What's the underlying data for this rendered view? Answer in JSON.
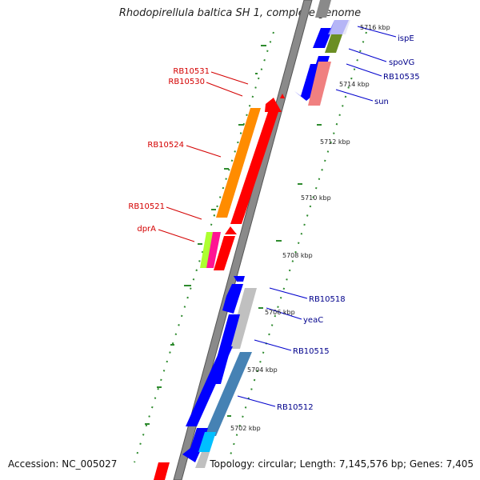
{
  "header": {
    "title": "Rhodopirellula baltica SH 1, complete genome"
  },
  "footer": {
    "accession": "Accession: NC_005027",
    "summary": "Topology: circular; Length: 7,145,576 bp; Genes: 7,405"
  },
  "colors": {
    "forward": "#ff0000",
    "reverse": "#0000ff",
    "axis": "#808080",
    "gc_marks": "#2e8b2e",
    "label_forward": "#d40000",
    "label_reverse": "#00008b"
  },
  "scale": {
    "labels": [
      "5716 kbp",
      "5714 kbp",
      "5712 kbp",
      "5710 kbp",
      "5708 kbp",
      "5706 kbp",
      "5704 kbp",
      "5702 kbp"
    ]
  },
  "forward_labels": [
    "RB10531",
    "RB10530",
    "RB10524",
    "RB10521",
    "dprA"
  ],
  "reverse_labels": [
    "ispE",
    "spoVG",
    "RB10535",
    "sun",
    "RB10518",
    "yeaC",
    "RB10515",
    "RB10512"
  ]
}
